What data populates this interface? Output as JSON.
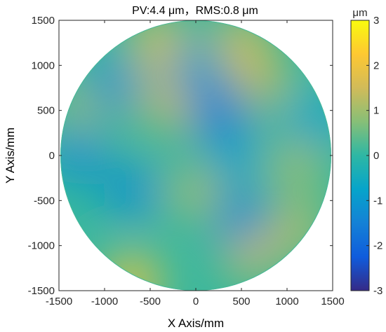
{
  "chart_data": {
    "type": "heatmap",
    "title": "PV:4.4 μm，RMS:0.8 μm",
    "xlabel": "X Axis/mm",
    "ylabel": "Y Axis/mm",
    "xlim": [
      -1500,
      1500
    ],
    "ylim": [
      -1500,
      1500
    ],
    "x_ticks": [
      -1500,
      -1000,
      -500,
      0,
      500,
      1000,
      1500
    ],
    "y_ticks": [
      -1500,
      -1000,
      -500,
      0,
      500,
      1000,
      1500
    ],
    "x_tick_labels": [
      "-1500",
      "-1000",
      "-500",
      "0",
      "500",
      "1000",
      "1500"
    ],
    "y_tick_labels": [
      "-1500",
      "-1000",
      "-500",
      "0",
      "500",
      "1000",
      "1500"
    ],
    "aperture_radius": 1500,
    "colorbar": {
      "label": "μm",
      "range": [
        -3,
        3
      ],
      "ticks": [
        -3,
        -2,
        -1,
        0,
        1,
        2,
        3
      ],
      "tick_labels": [
        "-3",
        "-2",
        "-1",
        "0",
        "1",
        "2",
        "3"
      ],
      "colormap": "parula"
    },
    "grid": false,
    "colormap_stops": [
      "#352a87",
      "#0f5cdd",
      "#1481d6",
      "#06a4ca",
      "#2eb7a4",
      "#87bf77",
      "#d1bb59",
      "#fec832",
      "#f9fb0e"
    ],
    "surface_features": [
      {
        "x": 500,
        "y": 1250,
        "value": 1.6
      },
      {
        "x": -400,
        "y": 1250,
        "value": 1.8
      },
      {
        "x": -300,
        "y": 600,
        "value": 1.5
      },
      {
        "x": 700,
        "y": 850,
        "value": 1.4
      },
      {
        "x": -700,
        "y": -1400,
        "value": 2.0
      },
      {
        "x": 600,
        "y": -1050,
        "value": 1.6
      },
      {
        "x": -1200,
        "y": 600,
        "value": 1.0
      },
      {
        "x": 1100,
        "y": -100,
        "value": 1.0
      },
      {
        "x": 0,
        "y": -400,
        "value": 1.0
      },
      {
        "x": 1100,
        "y": -800,
        "value": 1.2
      },
      {
        "x": 250,
        "y": 500,
        "value": -1.7
      },
      {
        "x": -900,
        "y": 800,
        "value": -1.1
      },
      {
        "x": -1300,
        "y": 0,
        "value": -1.2
      },
      {
        "x": -700,
        "y": -400,
        "value": -1.2
      },
      {
        "x": 500,
        "y": -700,
        "value": -1.3
      },
      {
        "x": 1300,
        "y": 400,
        "value": -0.8
      },
      {
        "x": 400,
        "y": 0,
        "value": -0.9
      },
      {
        "x": 0,
        "y": 950,
        "value": -1.0
      }
    ]
  }
}
